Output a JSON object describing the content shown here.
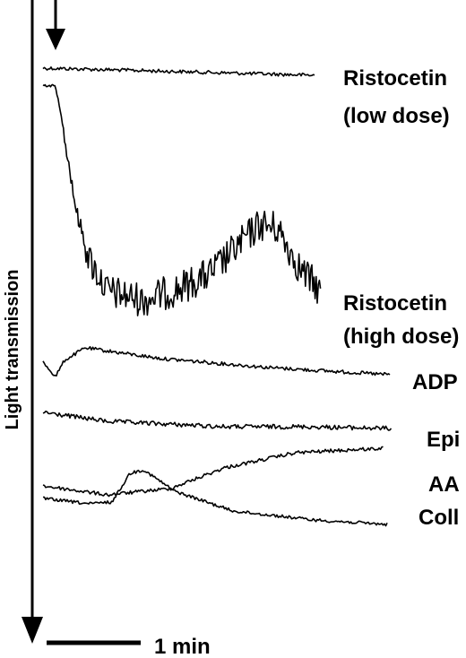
{
  "chart_data": {
    "type": "line",
    "ylabel": "Light transmission",
    "scale_bar_label": "1 min",
    "series": [
      {
        "name": "Ristocetin (low dose)",
        "label_lines": [
          "Ristocetin",
          "(low dose)"
        ]
      },
      {
        "name": "Ristocetin (high dose)",
        "label_lines": [
          "Ristocetin",
          "(high dose)"
        ]
      },
      {
        "name": "ADP",
        "label_lines": [
          "ADP"
        ]
      },
      {
        "name": "Epi",
        "label_lines": [
          "Epi"
        ]
      },
      {
        "name": "AA",
        "label_lines": [
          "AA"
        ]
      },
      {
        "name": "Coll",
        "label_lines": [
          "Coll"
        ]
      }
    ]
  }
}
